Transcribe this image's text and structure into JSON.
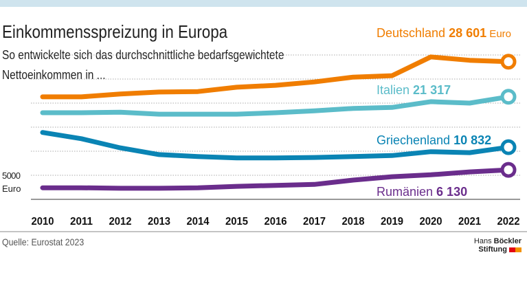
{
  "title": "Einkommensspreizung in Europa",
  "subtitle_line1": "So entwickelte sich das durchschnittliche bedarfsgewichtete",
  "subtitle_line2": "Nettoeinkommen in ...",
  "source": "Quelle: Eurostat 2023",
  "logo": {
    "line1_a": "Hans",
    "line1_b": "Böckler",
    "line2": "Stiftung",
    "colors": [
      "#e30613",
      "#f39200"
    ]
  },
  "chart_data": {
    "type": "line",
    "categories": [
      "2010",
      "2011",
      "2012",
      "2013",
      "2014",
      "2015",
      "2016",
      "2017",
      "2018",
      "2019",
      "2020",
      "2021",
      "2022"
    ],
    "ylim": [
      0,
      30000
    ],
    "ytick_label": "5000",
    "ytick_unit": "Euro",
    "grid": true,
    "gridlines": [
      5000,
      10000,
      15000,
      20000,
      25000,
      30000
    ],
    "series": [
      {
        "name": "Deutschland",
        "value_label": "28 601",
        "unit_label": "Euro",
        "color": "#f07d00",
        "values": [
          21300,
          21300,
          21900,
          22300,
          22400,
          23300,
          23700,
          24400,
          25400,
          25700,
          29600,
          28900,
          28601
        ]
      },
      {
        "name": "Italien",
        "value_label": "21 317",
        "unit_label": "",
        "color": "#5bbcc9",
        "values": [
          18000,
          18000,
          18100,
          17700,
          17700,
          17700,
          18000,
          18400,
          18900,
          19100,
          20300,
          20000,
          21317
        ]
      },
      {
        "name": "Griechenland",
        "value_label": "10 832",
        "unit_label": "",
        "color": "#0a84b4",
        "values": [
          13900,
          12600,
          10700,
          9300,
          8900,
          8600,
          8600,
          8700,
          8900,
          9100,
          9900,
          9700,
          10832
        ]
      },
      {
        "name": "Rumänien",
        "value_label": "6 130",
        "unit_label": "",
        "color": "#6a2d8c",
        "values": [
          2400,
          2400,
          2300,
          2300,
          2400,
          2700,
          2900,
          3100,
          4000,
          4700,
          5100,
          5700,
          6130
        ]
      }
    ]
  }
}
